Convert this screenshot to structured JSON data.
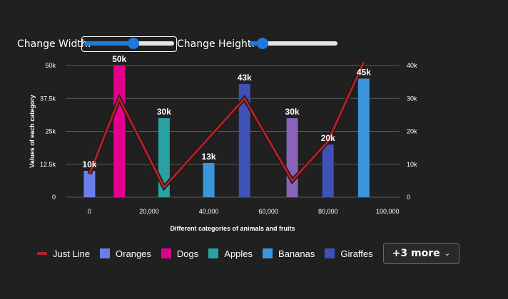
{
  "controls": {
    "width_label": "Change Width:",
    "height_label": "Change Height:",
    "width_value": 0.55,
    "height_value": 0.12
  },
  "chart_data": {
    "type": "bar",
    "xlabel": "Different categories of animals and fruits",
    "ylabel": "Values of each category",
    "xlim": [
      -8000,
      104000
    ],
    "ylim": [
      0,
      50000
    ],
    "y2lim": [
      0,
      40000
    ],
    "x_ticks": [
      "0",
      "20,000",
      "40,000",
      "60,000",
      "80,000",
      "100,000"
    ],
    "y_ticks": [
      "0",
      "12.5k",
      "25k",
      "37.5k",
      "50k"
    ],
    "y2_ticks": [
      "0",
      "10k",
      "20k",
      "30k",
      "40k"
    ],
    "grid": true,
    "legend_position": "bottom",
    "series": [
      {
        "name": "Oranges",
        "color": "#6b7fea",
        "x": 0,
        "value": 10000,
        "label": "10k"
      },
      {
        "name": "Dogs",
        "color": "#e3008c",
        "x": 10000,
        "value": 50000,
        "label": "50k"
      },
      {
        "name": "Apples",
        "color": "#2aa0a4",
        "x": 25000,
        "value": 30000,
        "label": "30k"
      },
      {
        "name": "Bananas",
        "color": "#3a96dd",
        "x": 40000,
        "value": 13000,
        "label": "13k"
      },
      {
        "name": "Giraffes",
        "color": "#3f51b5",
        "x": 52000,
        "value": 43000,
        "label": "43k"
      },
      {
        "name": "",
        "color": "#8764b8",
        "x": 68000,
        "value": 30000,
        "label": "30k"
      },
      {
        "name": "",
        "color": "#3f51b5",
        "x": 80000,
        "value": 20000,
        "label": "20k"
      },
      {
        "name": "",
        "color": "#3a96dd",
        "x": 92000,
        "value": 45000,
        "label": "45k"
      }
    ],
    "line": {
      "name": "Just Line",
      "color": "#a4262c",
      "axis": "secondary",
      "points": [
        [
          0,
          7000
        ],
        [
          10000,
          30000
        ],
        [
          25000,
          3000
        ],
        [
          52000,
          30000
        ],
        [
          68000,
          5000
        ],
        [
          80000,
          17000
        ],
        [
          92000,
          41000
        ]
      ]
    }
  },
  "legend": {
    "items": [
      {
        "label": "Just Line",
        "color": "#a4262c",
        "kind": "line"
      },
      {
        "label": "Oranges",
        "color": "#6b7fea",
        "kind": "box"
      },
      {
        "label": "Dogs",
        "color": "#e3008c",
        "kind": "box"
      },
      {
        "label": "Apples",
        "color": "#2aa0a4",
        "kind": "box"
      },
      {
        "label": "Bananas",
        "color": "#3a96dd",
        "kind": "box"
      },
      {
        "label": "Giraffes",
        "color": "#3f51b5",
        "kind": "box"
      }
    ],
    "more_label": "+3 more"
  }
}
